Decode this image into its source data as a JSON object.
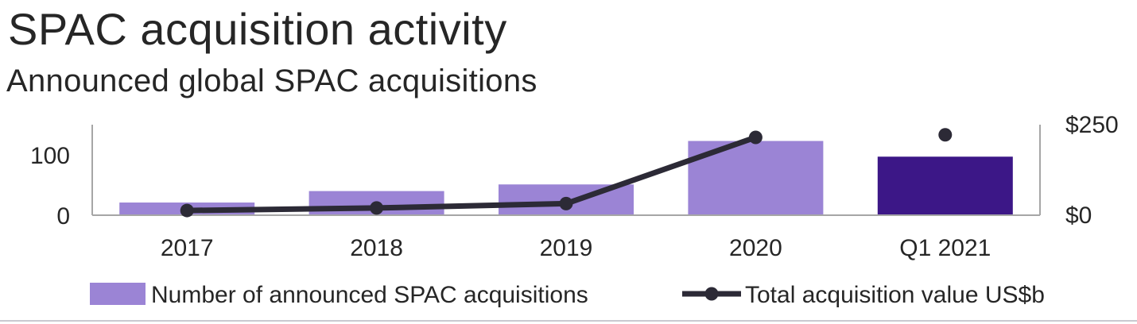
{
  "title": "SPAC acquisition activity",
  "subtitle": "Announced global SPAC acquisitions",
  "chart_data": {
    "type": "bar",
    "categories": [
      "2017",
      "2018",
      "2019",
      "2020",
      "Q1 2021"
    ],
    "series": [
      {
        "name": "Number of announced SPAC acquisitions",
        "kind": "bar",
        "axis": "left",
        "values": [
          21,
          40,
          51,
          123,
          97
        ],
        "colors": [
          "#9b84d5",
          "#9b84d5",
          "#9b84d5",
          "#9b84d5",
          "#3c1787"
        ]
      },
      {
        "name": "Total acquisition value US$b",
        "kind": "line",
        "axis": "right",
        "values": [
          13,
          20,
          32,
          215,
          222
        ],
        "connected": [
          true,
          true,
          true,
          true,
          false
        ],
        "color": "#2c2a36"
      }
    ],
    "y_left": {
      "ticks": [
        0,
        100
      ],
      "tick_labels": [
        "0",
        "100"
      ],
      "range": [
        0,
        150
      ]
    },
    "y_right": {
      "ticks": [
        0,
        250
      ],
      "tick_labels": [
        "$0",
        "$250"
      ],
      "range": [
        0,
        250
      ]
    },
    "legend_position": "bottom",
    "grid": false
  }
}
